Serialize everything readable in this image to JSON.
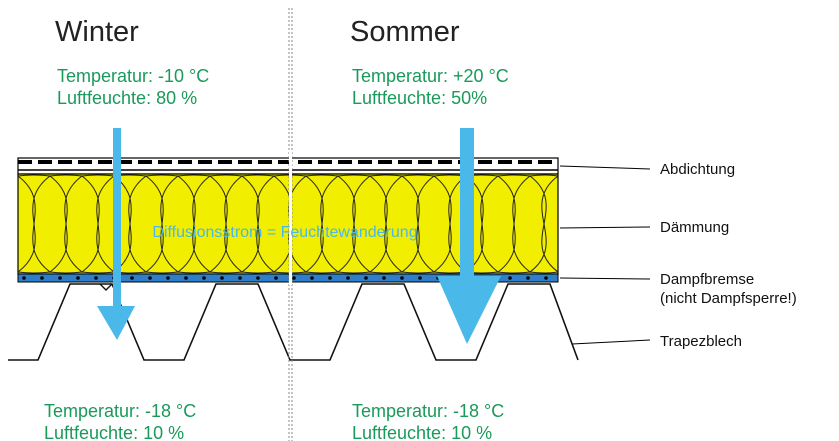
{
  "winter": {
    "title": "Winter",
    "top_temp": "Temperatur: -10 °C",
    "top_humidity": "Luftfeuchte:  80 %",
    "bottom_temp": "Temperatur: -18 °C",
    "bottom_humidity": "Luftfeuchte:  10 %"
  },
  "summer": {
    "title": "Sommer",
    "top_temp": "Temperatur: +20 °C",
    "top_humidity": "Luftfeuchte:  50%",
    "bottom_temp": "Temperatur: -18 °C",
    "bottom_humidity": "Luftfeuchte:  10 %"
  },
  "flow_label": "Diffusionsstrom = Feuchtewanderung",
  "layers": {
    "sealing": "Abdichtung",
    "insulation": "Dämmung",
    "vapor_brake": "Dampfbremse",
    "vapor_brake_note": "(nicht Dampfsperre!)",
    "trapezoidal_sheet": "Trapezblech"
  },
  "colors": {
    "insulation": "#f2ee00",
    "vapor_brake": "#2f7fc8",
    "arrow": "#4ab8e8",
    "condition_text": "#1a9a5a"
  }
}
